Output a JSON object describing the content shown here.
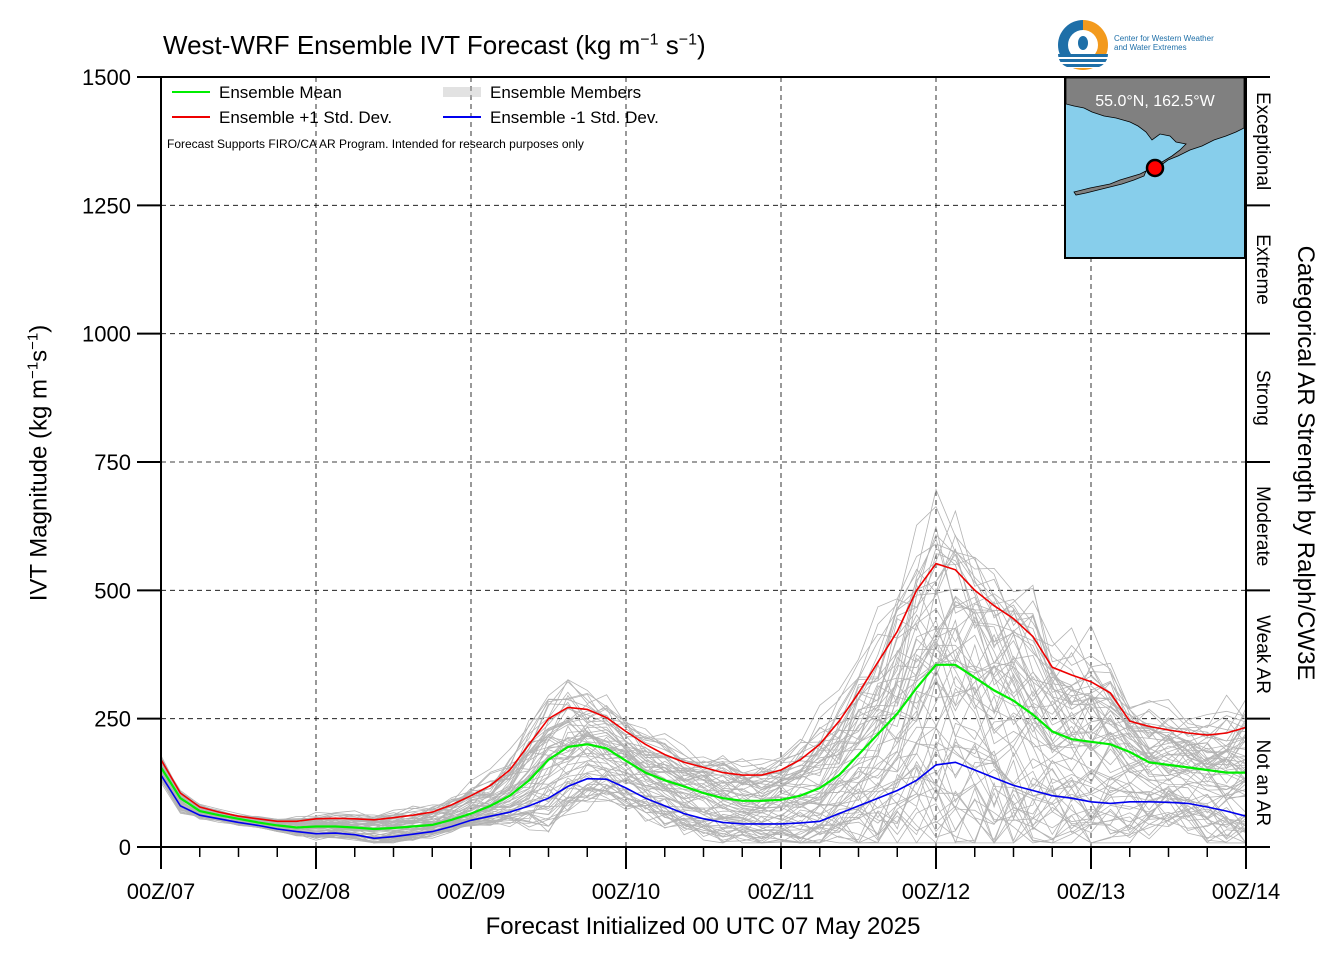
{
  "header": {
    "title_main": "West-WRF Ensemble IVT Forecast (kg m",
    "title_exp1": "−1",
    "title_s": " s",
    "title_exp2": "−1",
    "title_close": ")"
  },
  "logo": {
    "line1": "Center for Western Weather",
    "line2": "and Water Extremes"
  },
  "inset": {
    "label": "55.0°N, 162.5°W",
    "colors": {
      "ocean": "#87ceeb",
      "land": "#808080",
      "marker": "#ff0000"
    }
  },
  "axes": {
    "ylabel_main": "IVT Magnitude (kg m",
    "ylabel_exp1": "−1",
    "ylabel_s": "s",
    "ylabel_exp2": "−1",
    "ylabel_close": ")",
    "xlabel": "Forecast Initialized 00 UTC 07 May 2025",
    "right_label": "Categorical AR Strength by Ralph/CW3E"
  },
  "note": "Forecast Supports FIRO/CA AR Program. Intended for research purposes only",
  "chart_data": {
    "type": "line",
    "x_ticks": [
      "00Z/07",
      "00Z/08",
      "00Z/09",
      "00Z/10",
      "00Z/11",
      "00Z/12",
      "00Z/13",
      "00Z/14"
    ],
    "x_unit": "days since 00Z/07",
    "xlim": [
      0,
      7
    ],
    "ylim": [
      0,
      1500
    ],
    "y_ticks": [
      0,
      250,
      500,
      750,
      1000,
      1250,
      1500
    ],
    "grid": true,
    "legend_position": "top-left",
    "legend": [
      {
        "label": "Ensemble Mean",
        "color": "#00ee00"
      },
      {
        "label": "Ensemble Members",
        "color": "#b0b0b0"
      },
      {
        "label": "Ensemble +1 Std. Dev.",
        "color": "#ee0000"
      },
      {
        "label": "Ensemble -1 Std. Dev.",
        "color": "#0000ee"
      }
    ],
    "categories": [
      {
        "label": "Not an AR",
        "from": 0,
        "to": 250
      },
      {
        "label": "Weak AR",
        "from": 250,
        "to": 500
      },
      {
        "label": "Moderate",
        "from": 500,
        "to": 750
      },
      {
        "label": "Strong",
        "from": 750,
        "to": 1000
      },
      {
        "label": "Extreme",
        "from": 1000,
        "to": 1250
      },
      {
        "label": "Exceptional",
        "from": 1250,
        "to": 1500
      }
    ],
    "x": [
      0,
      0.125,
      0.25,
      0.375,
      0.5,
      0.625,
      0.75,
      0.875,
      1.0,
      1.125,
      1.25,
      1.375,
      1.5,
      1.625,
      1.75,
      1.875,
      2.0,
      2.125,
      2.25,
      2.375,
      2.5,
      2.625,
      2.75,
      2.875,
      3.0,
      3.125,
      3.25,
      3.375,
      3.5,
      3.625,
      3.75,
      3.875,
      4.0,
      4.125,
      4.25,
      4.375,
      4.5,
      4.625,
      4.75,
      4.875,
      5.0,
      5.125,
      5.25,
      5.375,
      5.5,
      5.625,
      5.75,
      5.875,
      6.0,
      6.125,
      6.25,
      6.375,
      6.5,
      6.625,
      6.75,
      6.875,
      7.0
    ],
    "series": [
      {
        "name": "Ensemble Mean",
        "color": "#00ee00",
        "values": [
          155,
          95,
          70,
          62,
          55,
          48,
          42,
          38,
          40,
          40,
          38,
          35,
          37,
          40,
          43,
          53,
          65,
          80,
          100,
          130,
          170,
          195,
          200,
          192,
          168,
          145,
          130,
          118,
          105,
          95,
          90,
          90,
          92,
          100,
          115,
          140,
          180,
          220,
          260,
          310,
          355,
          355,
          330,
          305,
          285,
          258,
          225,
          210,
          205,
          200,
          185,
          165,
          160,
          155,
          150,
          145,
          145
        ]
      },
      {
        "name": "Ensemble +1 Std. Dev.",
        "color": "#ee0000",
        "values": [
          170,
          105,
          78,
          68,
          60,
          55,
          50,
          50,
          55,
          56,
          55,
          53,
          57,
          62,
          68,
          82,
          100,
          120,
          150,
          200,
          250,
          272,
          268,
          252,
          225,
          200,
          180,
          165,
          155,
          145,
          140,
          140,
          150,
          170,
          200,
          245,
          300,
          360,
          420,
          500,
          552,
          540,
          500,
          470,
          445,
          410,
          350,
          335,
          322,
          300,
          245,
          235,
          228,
          222,
          218,
          222,
          233
        ]
      },
      {
        "name": "Ensemble -1 Std. Dev.",
        "color": "#0000ee",
        "values": [
          140,
          80,
          62,
          55,
          48,
          42,
          35,
          30,
          26,
          27,
          24,
          17,
          20,
          25,
          30,
          40,
          52,
          60,
          68,
          80,
          95,
          118,
          133,
          132,
          115,
          95,
          80,
          65,
          55,
          48,
          45,
          45,
          45,
          47,
          50,
          65,
          80,
          95,
          110,
          130,
          160,
          165,
          150,
          135,
          120,
          110,
          100,
          95,
          88,
          85,
          88,
          88,
          87,
          85,
          78,
          70,
          60
        ]
      }
    ]
  }
}
